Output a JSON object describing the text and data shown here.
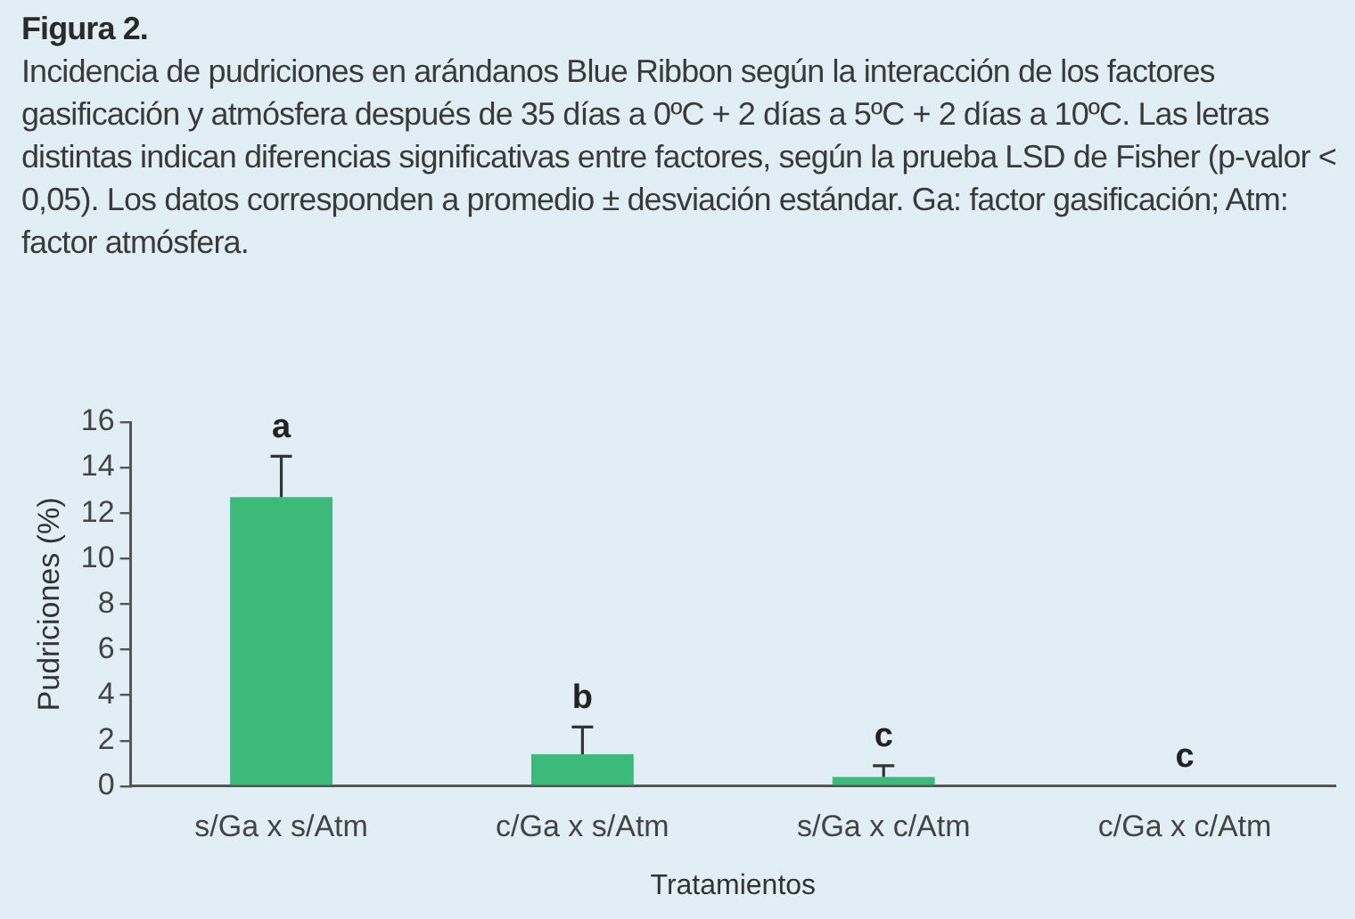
{
  "chart_data": {
    "type": "bar",
    "title": "Figura 2.",
    "subtitle": "Incidencia de pudriciones en arándanos Blue Ribbon según la interacción de los factores gasificación y atmósfera después de 35 días a 0ºC + 2 días a 5ºC + 2 días a 10ºC. Las letras distintas indican diferencias significativas entre factores, según la prueba LSD de Fisher (p-valor < 0,05). Los datos corresponden a promedio ± desviación estándar. Ga: factor gasificación; Atm: factor atmósfera.",
    "xlabel": "Tratamientos",
    "ylabel": "Pudriciones (%)",
    "categories": [
      "s/Ga x s/Atm",
      "c/Ga x s/Atm",
      "s/Ga x c/Atm",
      "c/Ga x c/Atm"
    ],
    "values": [
      12.7,
      1.4,
      0.4,
      0
    ],
    "errors": [
      [
        12.7,
        14.5
      ],
      [
        1.4,
        2.6
      ],
      [
        0.4,
        0.9
      ],
      null
    ],
    "color": "#3dba7a",
    "ylim": [
      0,
      16
    ],
    "yticks": [
      0,
      2,
      4,
      6,
      8,
      10,
      12,
      14,
      16
    ],
    "grid": false,
    "legend": false,
    "annotations": [
      {
        "text": "a",
        "x": "s/Ga x s/Atm",
        "y": 12.7
      },
      {
        "text": "b",
        "x": "c/Ga x s/Atm",
        "y": 1.4
      },
      {
        "text": "c",
        "x": "s/Ga x c/Atm",
        "y": 0.4
      },
      {
        "text": "c",
        "x": "c/Ga x c/Atm",
        "y": 0
      }
    ]
  }
}
